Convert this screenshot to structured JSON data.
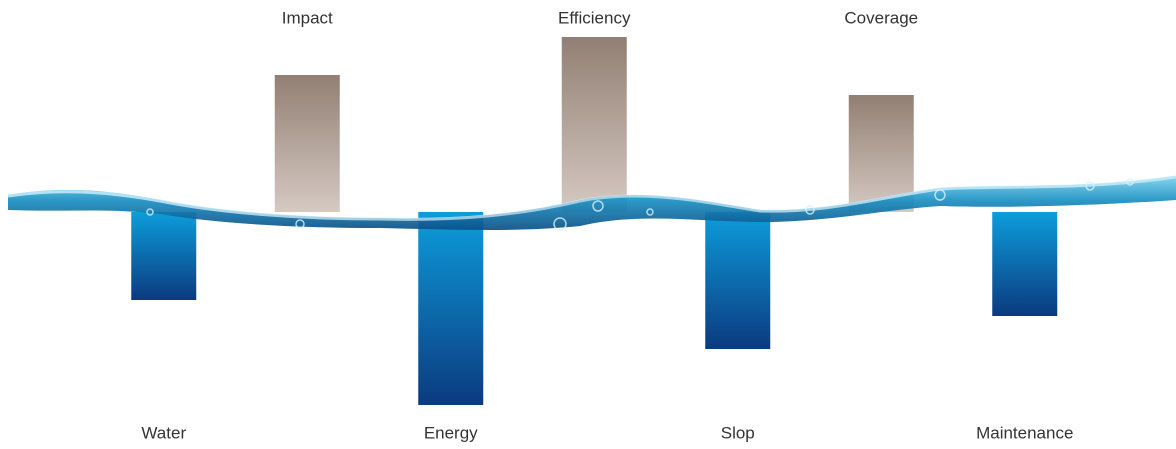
{
  "chart_data": {
    "type": "bar",
    "categories": [
      "Water",
      "Impact",
      "Energy",
      "Efficiency",
      "Slop",
      "Coverage",
      "Maintenance"
    ],
    "values": [
      -88,
      137,
      -193,
      175,
      -137,
      117,
      -104
    ],
    "positive_gradient": [
      "#927f73",
      "#d5c9c2"
    ],
    "negative_gradient": [
      "#0d9ddb",
      "#0b3a7f"
    ]
  }
}
